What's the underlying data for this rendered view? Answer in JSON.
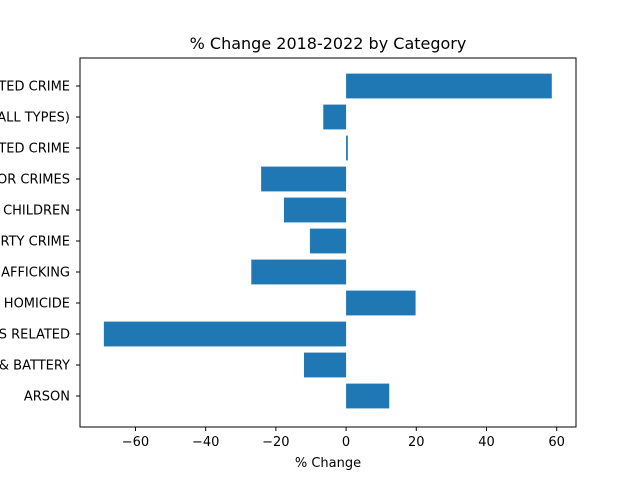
{
  "chart_data": {
    "type": "bar",
    "orientation": "horizontal",
    "title": "% Change 2018-2022 by Category",
    "xlabel": "% Change",
    "ylabel": "",
    "categories": [
      "ARSON",
      "& BATTERY",
      "S RELATED",
      "HOMICIDE",
      "AFFICKING",
      "RTY CRIME",
      "CHILDREN",
      "OR CRIMES",
      "TED CRIME",
      "ALL TYPES)",
      "TED CRIME"
    ],
    "values": [
      12.3,
      -12.0,
      -69.0,
      19.8,
      -27.0,
      -10.3,
      -17.7,
      -24.2,
      0.5,
      -6.5,
      58.6
    ],
    "xlim": [
      -75.8,
      65.5
    ],
    "xticks": [
      -60,
      -40,
      -20,
      0,
      20,
      40,
      60
    ],
    "xtick_labels": [
      "−60",
      "−40",
      "−20",
      "0",
      "20",
      "40",
      "60"
    ],
    "grid": false,
    "bar_color": "#1f77b4"
  }
}
